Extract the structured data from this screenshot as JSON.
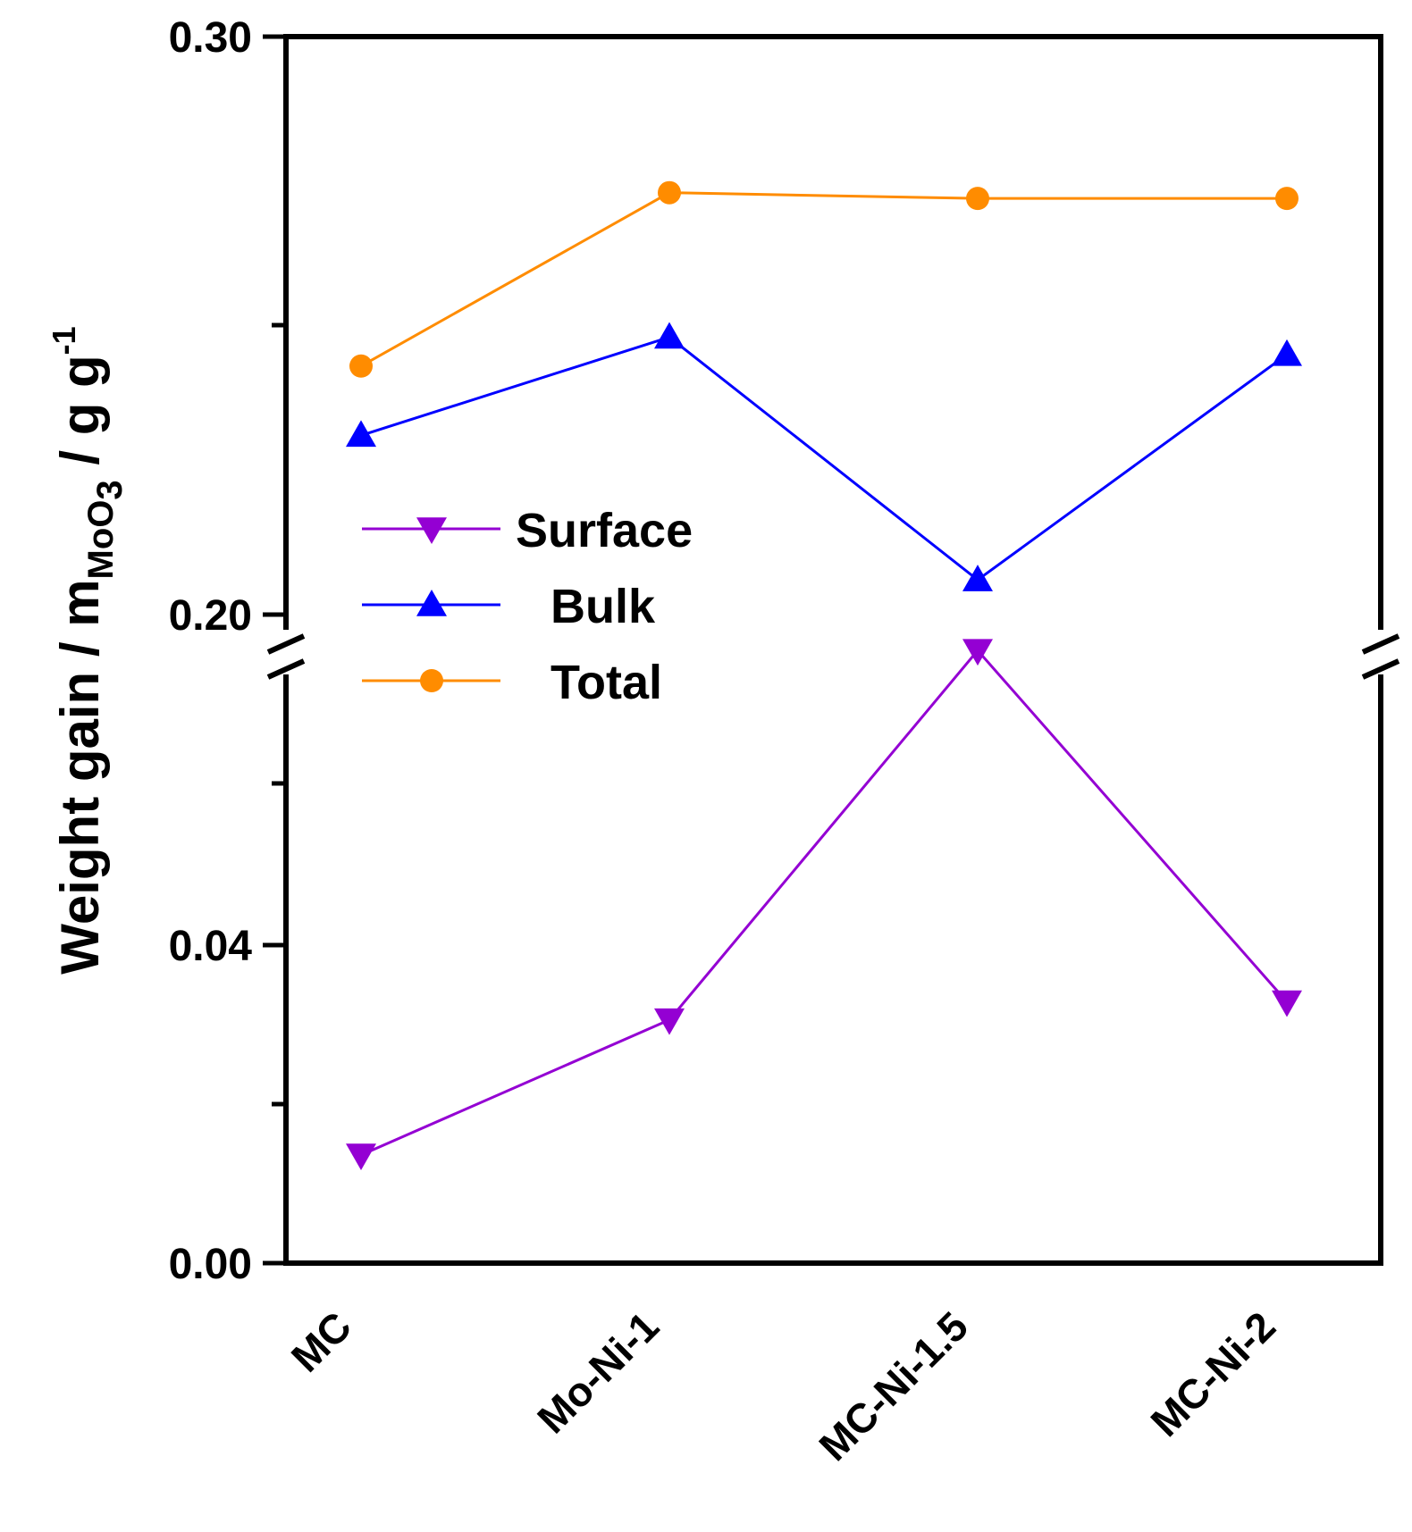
{
  "chart_data": {
    "type": "line",
    "title": "",
    "xlabel": "",
    "ylabel": {
      "main": "Weight gain / m",
      "subscript_base": "MoO",
      "subscript_num": "3",
      "units": " / g g",
      "superscript": "-1"
    },
    "categories": [
      "MC",
      "Mo-Ni-1",
      "MC-Ni-1.5",
      "MC-Ni-2"
    ],
    "axis_break": true,
    "lower_range": [
      0.0,
      0.07
    ],
    "upper_range": [
      0.2,
      0.3
    ],
    "y_tick_labels": [
      "0.00",
      "0.04",
      "0.20",
      "0.30"
    ],
    "legend_position": "center-left",
    "series": [
      {
        "name": "Surface",
        "marker": "triangle-down",
        "color": "#9400D3",
        "values": [
          0.012,
          0.027,
          0.068,
          0.029
        ]
      },
      {
        "name": "Bulk",
        "marker": "triangle-up",
        "color": "#0000FF",
        "values": [
          0.231,
          0.248,
          0.206,
          0.245
        ]
      },
      {
        "name": "Total",
        "marker": "circle",
        "color": "#FF8C00",
        "values": [
          0.243,
          0.273,
          0.272,
          0.272
        ]
      }
    ]
  }
}
